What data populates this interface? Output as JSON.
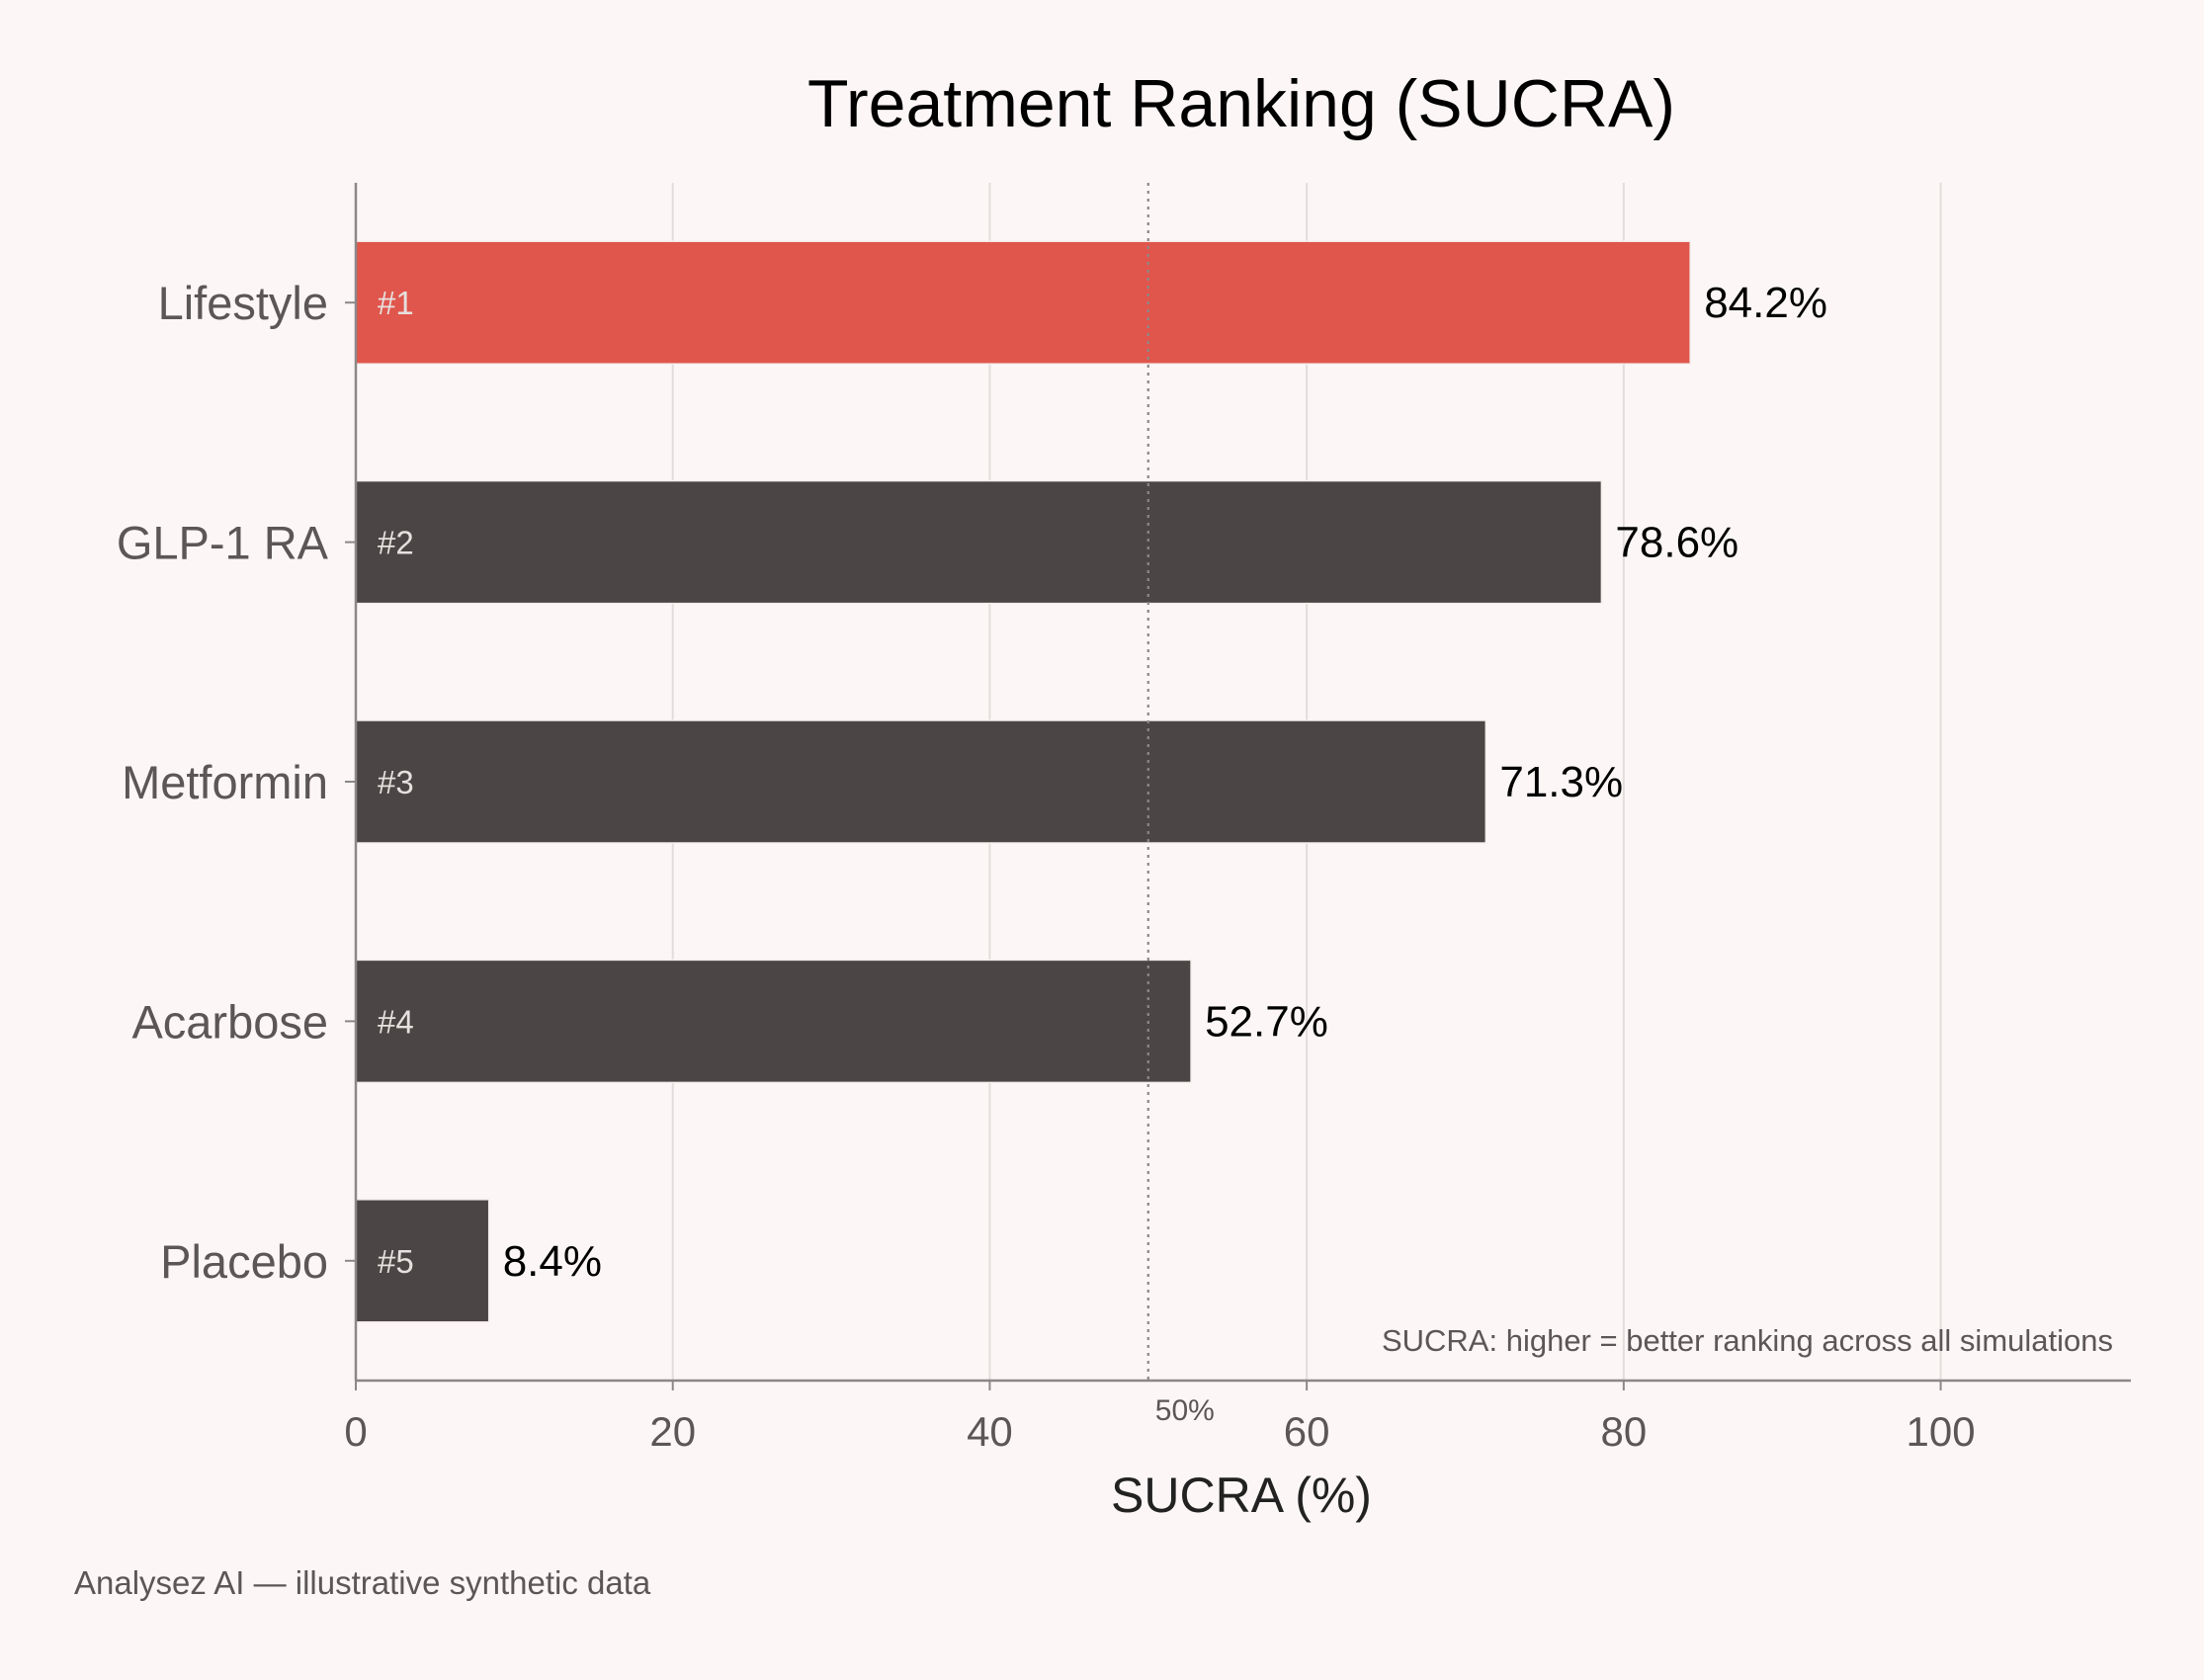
{
  "colors": {
    "background": "#fcf7f6",
    "highlight": "#e0564c",
    "bar": "#4b4645",
    "grid": "#e2dcdb",
    "axis": "#8c8888",
    "reference_line": "#8c8888"
  },
  "chart_data": {
    "type": "bar",
    "orientation": "horizontal",
    "title": "Treatment Ranking (SUCRA)",
    "xlabel": "SUCRA (%)",
    "ylabel": "",
    "categories": [
      "Lifestyle",
      "GLP-1 RA",
      "Metformin",
      "Acarbose",
      "Placebo"
    ],
    "values": [
      84.2,
      78.6,
      71.3,
      52.7,
      8.4
    ],
    "value_labels": [
      "84.2%",
      "78.6%",
      "71.3%",
      "52.7%",
      "8.4%"
    ],
    "rank_labels": [
      "#1",
      "#2",
      "#3",
      "#4",
      "#5"
    ],
    "highlighted_index": 0,
    "xlim": [
      0,
      112
    ],
    "xticks": [
      0,
      20,
      40,
      60,
      80,
      100
    ],
    "xtick_labels": [
      "0",
      "20",
      "40",
      "60",
      "80",
      "100"
    ],
    "grid": "vertical",
    "reference_line": {
      "x": 50,
      "label": "50%"
    },
    "annotation": "SUCRA: higher = better ranking across all simulations"
  },
  "footer": "Analysez AI — illustrative synthetic data"
}
